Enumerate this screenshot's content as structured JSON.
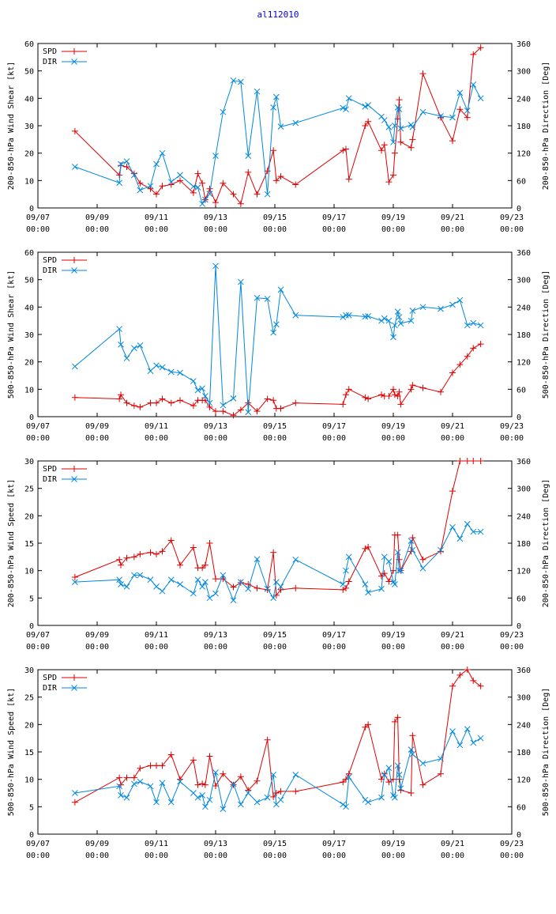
{
  "title": "al112010",
  "colors": {
    "spd": "#e00000",
    "dir": "#0088dd",
    "axis": "#000000",
    "title": "#0000cc"
  },
  "xaxis": {
    "range": [
      0,
      16
    ],
    "ticks": [
      {
        "x": 0,
        "date": "09/07",
        "time": "00:00"
      },
      {
        "x": 2,
        "date": "09/09",
        "time": "00:00"
      },
      {
        "x": 4,
        "date": "09/11",
        "time": "00:00"
      },
      {
        "x": 6,
        "date": "09/13",
        "time": "00:00"
      },
      {
        "x": 8,
        "date": "09/15",
        "time": "00:00"
      },
      {
        "x": 10,
        "date": "09/17",
        "time": "00:00"
      },
      {
        "x": 12,
        "date": "09/19",
        "time": "00:00"
      },
      {
        "x": 14,
        "date": "09/21",
        "time": "00:00"
      },
      {
        "x": 16,
        "date": "09/23",
        "time": "00:00"
      }
    ]
  },
  "chart_data": [
    {
      "type": "line",
      "ylabel": "200-850-hPa Wind Shear [kt]",
      "y2label": "200-850-hPa Direction [Deg]",
      "ylim": [
        0,
        60
      ],
      "yticks": [
        0,
        10,
        20,
        30,
        40,
        50,
        60
      ],
      "y2lim": [
        0,
        360
      ],
      "y2ticks": [
        0,
        60,
        120,
        180,
        240,
        300,
        360
      ],
      "legend": "top-left",
      "series": [
        {
          "name": "SPD",
          "axis": "left",
          "marker": "+",
          "x": [
            1.25,
            2.75,
            2.8,
            3.0,
            3.25,
            3.45,
            3.8,
            4.0,
            4.2,
            4.5,
            4.8,
            5.25,
            5.4,
            5.55,
            5.65,
            5.8,
            6.0,
            6.25,
            6.6,
            6.85,
            7.1,
            7.4,
            7.75,
            7.95,
            8.05,
            8.2,
            8.7,
            10.3,
            10.4,
            10.5,
            11.05,
            11.15,
            11.6,
            11.7,
            11.85,
            12.0,
            12.05,
            12.15,
            12.2,
            12.25,
            12.6,
            12.65,
            13.0,
            13.6,
            14.0,
            14.25,
            14.5,
            14.7,
            14.95
          ],
          "y": [
            28,
            12,
            15.5,
            15,
            12.5,
            9,
            7,
            5,
            8,
            8.5,
            10,
            5.5,
            12.5,
            9,
            3,
            7,
            2,
            9,
            5,
            1.5,
            13,
            5,
            13.5,
            21,
            10,
            11.5,
            8.5,
            21,
            21.5,
            10.5,
            30,
            31.5,
            21,
            23,
            9.5,
            12,
            20,
            32.5,
            39.5,
            24,
            22,
            25,
            49,
            33,
            24.5,
            36,
            33,
            56,
            58.5
          ]
        },
        {
          "name": "DIR",
          "axis": "right",
          "marker": "x",
          "x": [
            1.25,
            2.75,
            2.8,
            3.0,
            3.25,
            3.45,
            3.8,
            4.0,
            4.2,
            4.5,
            4.8,
            5.25,
            5.4,
            5.55,
            5.65,
            5.8,
            6.0,
            6.25,
            6.6,
            6.85,
            7.1,
            7.4,
            7.75,
            7.95,
            8.05,
            8.2,
            8.7,
            10.3,
            10.4,
            10.5,
            11.05,
            11.15,
            11.6,
            11.7,
            11.85,
            12.0,
            12.05,
            12.15,
            12.2,
            12.25,
            12.6,
            12.65,
            13.0,
            13.6,
            14.0,
            14.25,
            14.5,
            14.7,
            14.95
          ],
          "y": [
            90,
            55,
            96,
            102,
            72,
            39,
            48,
            96,
            120,
            57,
            72,
            47,
            45,
            9,
            18,
            31,
            114,
            210,
            279,
            276,
            114,
            255,
            30,
            220,
            243,
            178,
            186,
            219,
            216,
            240,
            222,
            225,
            200,
            192,
            177,
            144,
            180,
            220,
            216,
            174,
            182,
            177,
            210,
            201,
            198,
            252,
            213,
            270,
            240
          ]
        }
      ]
    },
    {
      "type": "line",
      "ylabel": "500-850-hPa Wind Shear [kt]",
      "y2label": "500-850-hPa Direction [Deg]",
      "ylim": [
        0,
        60
      ],
      "yticks": [
        0,
        10,
        20,
        30,
        40,
        50,
        60
      ],
      "y2lim": [
        0,
        360
      ],
      "y2ticks": [
        0,
        60,
        120,
        180,
        240,
        300,
        360
      ],
      "legend": "top-left",
      "series": [
        {
          "name": "SPD",
          "axis": "left",
          "marker": "+",
          "x": [
            1.25,
            2.75,
            2.8,
            3.0,
            3.25,
            3.45,
            3.8,
            4.0,
            4.2,
            4.5,
            4.8,
            5.25,
            5.4,
            5.55,
            5.65,
            5.8,
            6.0,
            6.25,
            6.6,
            6.85,
            7.1,
            7.4,
            7.75,
            7.95,
            8.05,
            8.2,
            8.7,
            10.3,
            10.4,
            10.5,
            11.05,
            11.15,
            11.6,
            11.7,
            11.85,
            12.0,
            12.05,
            12.15,
            12.2,
            12.25,
            12.6,
            12.65,
            13.0,
            13.6,
            14.0,
            14.25,
            14.5,
            14.7,
            14.95
          ],
          "y": [
            7,
            6.5,
            8,
            5,
            4,
            3.5,
            5,
            5,
            6.5,
            5,
            6,
            4,
            6,
            6,
            6,
            3.5,
            2,
            2,
            0.5,
            2.5,
            5,
            2,
            6.5,
            6,
            3,
            3,
            5,
            4.5,
            8,
            10,
            7,
            6.5,
            8,
            7.5,
            7.5,
            10,
            8,
            7.5,
            9,
            4.5,
            10,
            11.5,
            10.5,
            9,
            16,
            19,
            22,
            25,
            26.5
          ]
        },
        {
          "name": "DIR",
          "axis": "right",
          "marker": "x",
          "x": [
            1.25,
            2.75,
            2.8,
            3.0,
            3.25,
            3.45,
            3.8,
            4.0,
            4.2,
            4.5,
            4.8,
            5.25,
            5.4,
            5.55,
            5.65,
            5.8,
            6.0,
            6.25,
            6.6,
            6.85,
            7.1,
            7.4,
            7.75,
            7.95,
            8.05,
            8.2,
            8.7,
            10.3,
            10.4,
            10.5,
            11.05,
            11.15,
            11.6,
            11.7,
            11.85,
            12.0,
            12.05,
            12.15,
            12.2,
            12.25,
            12.6,
            12.65,
            13.0,
            13.6,
            14.0,
            14.25,
            14.5,
            14.7,
            14.95
          ],
          "y": [
            110,
            192,
            158,
            128,
            150,
            156,
            100,
            112,
            108,
            98,
            96,
            78,
            58,
            62,
            45,
            30,
            330,
            25,
            40,
            295,
            10,
            260,
            258,
            184,
            202,
            278,
            222,
            218,
            222,
            222,
            219,
            220,
            210,
            215,
            210,
            174,
            200,
            230,
            218,
            204,
            210,
            232,
            240,
            236,
            245,
            255,
            200,
            205,
            200
          ]
        }
      ]
    },
    {
      "type": "line",
      "ylabel": "200-850-hPa Wind Speed [kt]",
      "y2label": "200-850-hPa Direction [Deg]",
      "ylim": [
        0,
        30
      ],
      "yticks": [
        0,
        5,
        10,
        15,
        20,
        25,
        30
      ],
      "y2lim": [
        0,
        360
      ],
      "y2ticks": [
        0,
        60,
        120,
        180,
        240,
        300,
        360
      ],
      "legend": "top-left",
      "series": [
        {
          "name": "SPD",
          "axis": "left",
          "marker": "+",
          "x": [
            1.25,
            2.75,
            2.8,
            3.0,
            3.25,
            3.45,
            3.8,
            4.0,
            4.2,
            4.5,
            4.8,
            5.25,
            5.4,
            5.55,
            5.65,
            5.8,
            6.0,
            6.25,
            6.6,
            6.85,
            7.1,
            7.4,
            7.75,
            7.95,
            8.05,
            8.2,
            8.7,
            10.3,
            10.4,
            10.5,
            11.05,
            11.15,
            11.6,
            11.7,
            11.85,
            12.0,
            12.05,
            12.15,
            12.2,
            12.25,
            12.6,
            12.65,
            13.0,
            13.6,
            14.0,
            14.25,
            14.5,
            14.7,
            14.95
          ],
          "y": [
            8.8,
            12,
            11,
            12.3,
            12.5,
            13,
            13.3,
            13,
            13.5,
            15.5,
            11,
            14.2,
            10.5,
            10.5,
            11,
            15,
            8.5,
            8.5,
            7,
            7.8,
            7.5,
            6.8,
            6.5,
            13.3,
            5.5,
            6.5,
            6.8,
            6.5,
            6.8,
            8,
            14,
            14.3,
            9,
            9.5,
            8,
            10,
            16.5,
            16.5,
            12,
            10,
            13.5,
            16,
            12,
            13.5,
            24.5,
            30,
            30,
            30,
            30
          ]
        },
        {
          "name": "DIR",
          "axis": "right",
          "marker": "x",
          "x": [
            1.25,
            2.75,
            2.8,
            3.0,
            3.25,
            3.45,
            3.8,
            4.0,
            4.2,
            4.5,
            4.8,
            5.25,
            5.4,
            5.55,
            5.65,
            5.8,
            6.0,
            6.25,
            6.6,
            6.85,
            7.1,
            7.4,
            7.75,
            7.95,
            8.05,
            8.2,
            8.7,
            10.3,
            10.4,
            10.5,
            11.05,
            11.15,
            11.6,
            11.7,
            11.85,
            12.0,
            12.05,
            12.15,
            12.2,
            12.25,
            12.6,
            12.65,
            13.0,
            13.6,
            14.0,
            14.25,
            14.5,
            14.7,
            14.95
          ],
          "y": [
            95,
            100,
            90,
            85,
            110,
            110,
            100,
            85,
            75,
            100,
            90,
            70,
            100,
            85,
            95,
            60,
            70,
            110,
            55,
            95,
            80,
            145,
            80,
            60,
            95,
            85,
            144,
            90,
            120,
            150,
            90,
            72,
            80,
            150,
            140,
            95,
            90,
            160,
            120,
            120,
            185,
            165,
            125,
            165,
            215,
            190,
            222,
            205,
            205
          ]
        }
      ]
    },
    {
      "type": "line",
      "ylabel": "500-850-hPa Wind Speed [kt]",
      "y2label": "500-850-hPa Direction [Deg]",
      "ylim": [
        0,
        30
      ],
      "yticks": [
        0,
        5,
        10,
        15,
        20,
        25,
        30
      ],
      "y2lim": [
        0,
        360
      ],
      "y2ticks": [
        0,
        60,
        120,
        180,
        240,
        300,
        360
      ],
      "legend": "top-left",
      "series": [
        {
          "name": "SPD",
          "axis": "left",
          "marker": "+",
          "x": [
            1.25,
            2.75,
            2.8,
            3.0,
            3.25,
            3.45,
            3.8,
            4.0,
            4.2,
            4.5,
            4.8,
            5.25,
            5.4,
            5.55,
            5.65,
            5.8,
            6.0,
            6.25,
            6.6,
            6.85,
            7.1,
            7.4,
            7.75,
            7.95,
            8.05,
            8.2,
            8.7,
            10.3,
            10.4,
            10.5,
            11.05,
            11.15,
            11.6,
            11.7,
            11.85,
            12.0,
            12.05,
            12.15,
            12.2,
            12.25,
            12.6,
            12.65,
            13.0,
            13.6,
            14.0,
            14.25,
            14.5,
            14.7,
            14.95
          ],
          "y": [
            5.8,
            10.3,
            9,
            10.3,
            10.3,
            12,
            12.5,
            12.5,
            12.5,
            14.5,
            10,
            13.5,
            9,
            9.2,
            9,
            14.2,
            8.8,
            11,
            9,
            10.5,
            8,
            9.7,
            17.2,
            6.8,
            7.5,
            7.8,
            7.8,
            9.5,
            10,
            11,
            19.5,
            20,
            10,
            11,
            9.5,
            10,
            20.5,
            21.3,
            10,
            8,
            7.5,
            18,
            9,
            11,
            27,
            29,
            30,
            28,
            27
          ]
        },
        {
          "name": "DIR",
          "axis": "right",
          "marker": "x",
          "x": [
            1.25,
            2.75,
            2.8,
            3.0,
            3.25,
            3.45,
            3.8,
            4.0,
            4.2,
            4.5,
            4.8,
            5.25,
            5.4,
            5.55,
            5.65,
            5.8,
            6.0,
            6.25,
            6.6,
            6.85,
            7.1,
            7.4,
            7.75,
            7.95,
            8.05,
            8.2,
            8.7,
            10.3,
            10.4,
            10.5,
            11.05,
            11.15,
            11.6,
            11.7,
            11.85,
            12.0,
            12.05,
            12.15,
            12.2,
            12.25,
            12.6,
            12.65,
            13.0,
            13.6,
            14.0,
            14.25,
            14.5,
            14.7,
            14.95
          ],
          "y": [
            90,
            105,
            85,
            80,
            110,
            115,
            105,
            70,
            112,
            70,
            115,
            90,
            80,
            85,
            60,
            75,
            135,
            55,
            110,
            65,
            90,
            70,
            80,
            130,
            65,
            75,
            130,
            65,
            60,
            125,
            75,
            70,
            80,
            130,
            145,
            85,
            80,
            150,
            130,
            100,
            185,
            175,
            155,
            165,
            225,
            195,
            230,
            200,
            210
          ]
        }
      ]
    }
  ]
}
